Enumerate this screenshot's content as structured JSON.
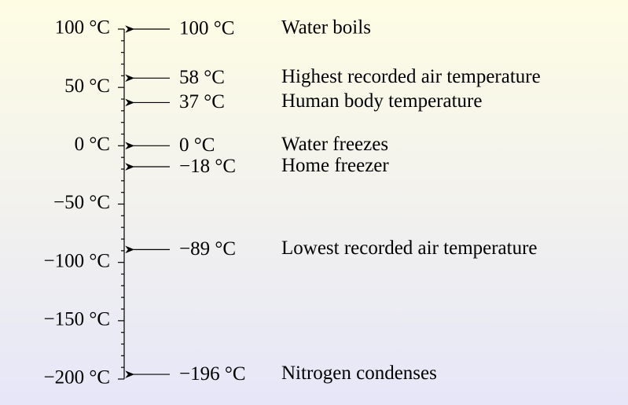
{
  "scale": {
    "range": [
      -200,
      100
    ],
    "ticks": [
      {
        "value": 100,
        "label": "100 °C"
      },
      {
        "value": 50,
        "label": "50 °C"
      },
      {
        "value": 0,
        "label": "0 °C"
      },
      {
        "value": -50,
        "label": "−50 °C"
      },
      {
        "value": -100,
        "label": "−100 °C"
      },
      {
        "value": -150,
        "label": "−150 °C"
      },
      {
        "value": -200,
        "label": "−200 °C"
      }
    ],
    "minor_ticks": [
      90,
      80,
      70,
      60,
      40,
      30,
      20,
      10,
      -10,
      -20,
      -30,
      -40,
      -60,
      -70,
      -80,
      -90,
      -110,
      -120,
      -130,
      -140,
      -160,
      -170,
      -180,
      -190
    ]
  },
  "markers": [
    {
      "value": 100,
      "label": "100 °C",
      "description": "Water boils"
    },
    {
      "value": 58,
      "label": "58 °C",
      "description": "Highest recorded air temperature"
    },
    {
      "value": 37,
      "label": "37 °C",
      "description": "Human body temperature"
    },
    {
      "value": 0,
      "label": "0 °C",
      "description": "Water freezes"
    },
    {
      "value": -18,
      "label": "−18 °C",
      "description": "Home freezer"
    },
    {
      "value": -89,
      "label": "−89 °C",
      "description": "Lowest recorded air temperature"
    },
    {
      "value": -196,
      "label": "−196 °C",
      "description": "Nitrogen condenses"
    }
  ]
}
